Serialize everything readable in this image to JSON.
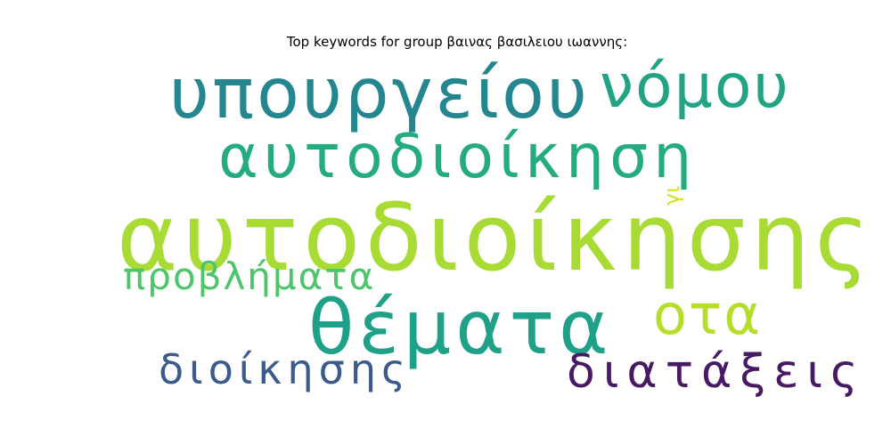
{
  "title": "Top keywords for group βαινας βασιλειου ιωαννης:",
  "words": [
    {
      "text": "υπουργείου",
      "color": "#24868e"
    },
    {
      "text": "νόμου",
      "color": "#22a384"
    },
    {
      "text": "αυτοδιοίκηση",
      "color": "#25ab82"
    },
    {
      "text": "γι",
      "color": "#d2e21b"
    },
    {
      "text": "αυτοδιοίκησης",
      "color": "#a8db34"
    },
    {
      "text": "προβλήματα",
      "color": "#4fc46a"
    },
    {
      "text": "θέματα",
      "color": "#1fa088"
    },
    {
      "text": "οτα",
      "color": "#b5de2b"
    },
    {
      "text": "διοίκησης",
      "color": "#3b5b8c"
    },
    {
      "text": "διατάξεις",
      "color": "#471a63"
    }
  ]
}
